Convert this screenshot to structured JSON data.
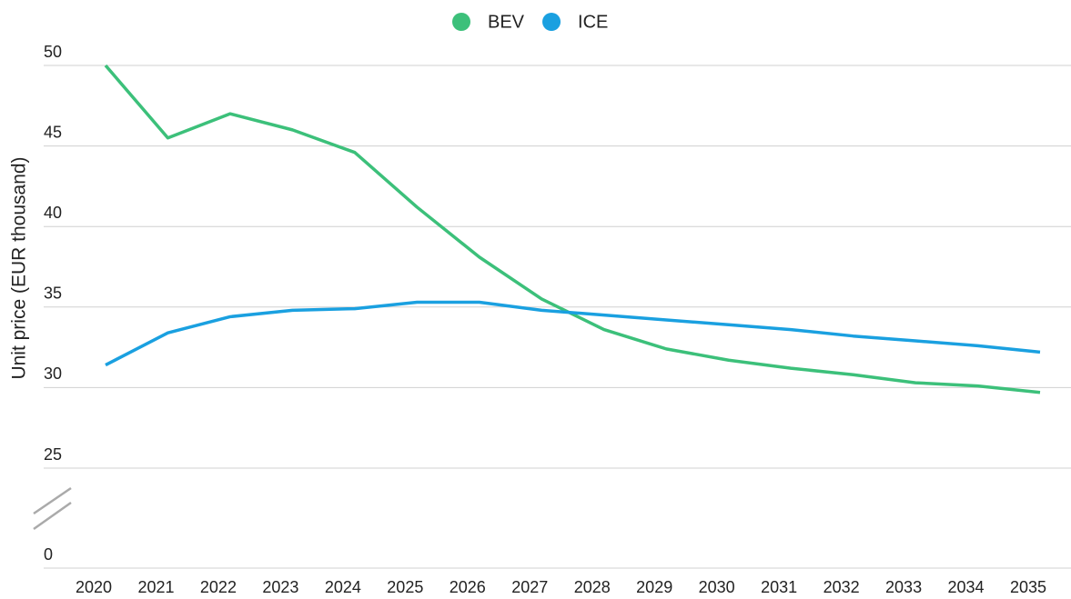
{
  "chart_data": {
    "type": "line",
    "y_label": "Unit price (EUR thousand)",
    "categories": [
      "2020",
      "2021",
      "2022",
      "2023",
      "2024",
      "2025",
      "2026",
      "2027",
      "2028",
      "2029",
      "2030",
      "2031",
      "2032",
      "2033",
      "2034",
      "2035"
    ],
    "series": [
      {
        "name": "BEV",
        "color": "#3cc07a",
        "values": [
          50,
          45.5,
          47,
          46,
          44.6,
          41.2,
          38.1,
          35.5,
          33.6,
          32.4,
          31.7,
          31.2,
          30.8,
          30.3,
          30.1,
          29.7
        ]
      },
      {
        "name": "ICE",
        "color": "#1aa0e0",
        "values": [
          31.4,
          33.4,
          34.4,
          34.8,
          34.9,
          35.3,
          35.3,
          34.8,
          34.5,
          34.2,
          33.9,
          33.6,
          33.2,
          32.9,
          32.6,
          32.2
        ]
      }
    ],
    "ylim": [
      0,
      50
    ],
    "yticks": [
      0,
      25,
      30,
      35,
      40,
      45,
      50
    ],
    "axis_break": [
      0,
      25
    ],
    "grid": true,
    "legend": "top"
  }
}
